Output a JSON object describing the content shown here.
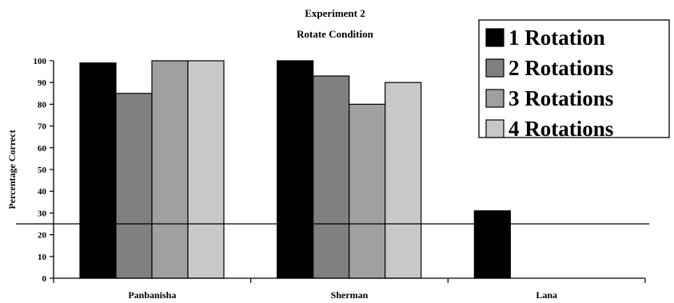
{
  "chart_data": {
    "type": "bar",
    "title": "Experiment 2",
    "subtitle": "Rotate Condition",
    "xlabel": "",
    "ylabel": "Percentage Correct",
    "ylim": [
      0,
      100
    ],
    "yticks": [
      "0",
      "10",
      "20",
      "30",
      "40",
      "50",
      "60",
      "70",
      "80",
      "90",
      "100"
    ],
    "categories": [
      "Panbanisha",
      "Sherman",
      "Lana"
    ],
    "series": [
      {
        "name": "1 Rotation",
        "color": "#000000",
        "values": [
          99,
          100,
          31
        ]
      },
      {
        "name": "2 Rotations",
        "color": "#808080",
        "values": [
          85,
          93,
          null
        ]
      },
      {
        "name": "3 Rotations",
        "color": "#a0a0a0",
        "values": [
          100,
          80,
          null
        ]
      },
      {
        "name": "4 Rotations",
        "color": "#c8c8c8",
        "values": [
          100,
          90,
          null
        ]
      }
    ],
    "reference_line": 25,
    "grid": false,
    "legend_position": "top-right"
  }
}
